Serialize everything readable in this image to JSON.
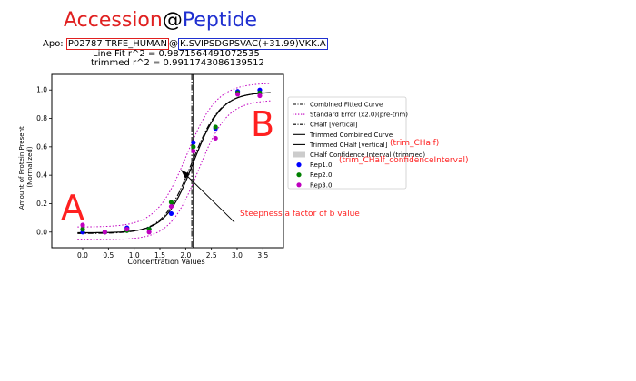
{
  "title": {
    "accession": "Accession",
    "at": "@",
    "peptide": "Peptide",
    "accession_color": "#e02020",
    "peptide_color": "#2030d0"
  },
  "apo": {
    "prefix": "Apo:",
    "accession": "P02787|TRFE_HUMAN",
    "at": "@",
    "peptide": "K.SVIPSDGPSVAC(+31.99)VKK.A"
  },
  "fit": {
    "line_fit": "Line Fit r^2 = 0.9871564491072535",
    "trimmed": "trimmed r^2 = 0.9911743086139512"
  },
  "annotations": {
    "a_label": "A",
    "b_label": "B",
    "steepness": "Steepness a factor of b value",
    "trim_chalf": "(trim_CHalf)",
    "trim_ci": "(trim_CHalf_confidenceInterval)",
    "annotation_color": "#ff2020"
  },
  "legend": {
    "placement": "right, outside plot",
    "entries": [
      {
        "label": "Combined Fitted Curve",
        "style": "dashdot",
        "color": "#000000"
      },
      {
        "label": "Standard Error (x2.0)(pre-trim)",
        "style": "dotted",
        "color": "#c000c0"
      },
      {
        "label": "CHalf [vertical]",
        "style": "dashdot",
        "color": "#000000"
      },
      {
        "label": "Trimmed Combined Curve",
        "style": "solid",
        "color": "#000000"
      },
      {
        "label": "Trimmed CHalf [vertical]",
        "style": "solid",
        "color": "#000000"
      },
      {
        "label": "CHalf Confidence Interval (trimmed)",
        "style": "band",
        "color": "#cccccc"
      },
      {
        "label": "Rep1.0",
        "style": "marker",
        "color": "#0000ff"
      },
      {
        "label": "Rep2.0",
        "style": "marker",
        "color": "#008000"
      },
      {
        "label": "Rep3.0",
        "style": "marker",
        "color": "#bf00bf"
      }
    ]
  },
  "chart_data": {
    "type": "scatter",
    "xlabel": "Concentration Values",
    "ylabel": "Amount of Protein Present (Normalized)",
    "ylabel_lines": [
      "Amount of Protein Present",
      "(Normalized)"
    ],
    "xlim": [
      -0.6,
      3.9
    ],
    "ylim": [
      -0.11,
      1.11
    ],
    "x_ticks": [
      0.0,
      0.5,
      1.0,
      1.5,
      2.0,
      2.5,
      3.0,
      3.5
    ],
    "x_tick_labels": [
      "0.0",
      "0.5",
      "1.0",
      "1.5",
      "2.0",
      "2.5",
      "3.0",
      "3.5"
    ],
    "y_ticks": [
      0.0,
      0.2,
      0.4,
      0.6,
      0.8,
      1.0
    ],
    "y_tick_labels": [
      "0.0",
      "0.2",
      "0.4",
      "0.6",
      "0.8",
      "1.0"
    ],
    "grid": false,
    "chalf": 2.12,
    "trimmed_chalf": 2.15,
    "chalf_ci": [
      2.13,
      2.17
    ],
    "series": [
      {
        "name": "Rep1.0",
        "color": "#0000ff",
        "x": [
          0.0,
          0.43,
          0.86,
          1.29,
          1.72,
          2.15,
          2.58,
          3.01,
          3.44
        ],
        "y": [
          0.0,
          0.0,
          0.03,
          0.02,
          0.13,
          0.63,
          0.73,
          0.99,
          1.0
        ]
      },
      {
        "name": "Rep2.0",
        "color": "#008000",
        "x": [
          0.0,
          0.43,
          0.86,
          1.29,
          1.72,
          2.15,
          2.58,
          3.01,
          3.44
        ],
        "y": [
          0.02,
          0.0,
          0.01,
          0.02,
          0.21,
          0.6,
          0.74,
          0.98,
          0.98
        ]
      },
      {
        "name": "Rep3.0",
        "color": "#bf00bf",
        "x": [
          0.0,
          0.43,
          0.86,
          1.29,
          1.72,
          2.15,
          2.58,
          3.01,
          3.44
        ],
        "y": [
          0.05,
          0.0,
          0.02,
          0.0,
          0.18,
          0.57,
          0.66,
          0.97,
          0.96
        ]
      }
    ],
    "curves": {
      "combined": {
        "bottom": -0.01,
        "top": 0.985,
        "chalf": 2.12,
        "slope": 3.6
      },
      "trimmed": {
        "bottom": -0.005,
        "top": 0.985,
        "chalf": 2.15,
        "slope": 3.7
      },
      "se_upper": {
        "bottom": 0.035,
        "top": 1.05,
        "chalf": 2.02,
        "slope": 3.4
      },
      "se_lower": {
        "bottom": -0.055,
        "top": 0.93,
        "chalf": 2.25,
        "slope": 3.6
      }
    }
  }
}
